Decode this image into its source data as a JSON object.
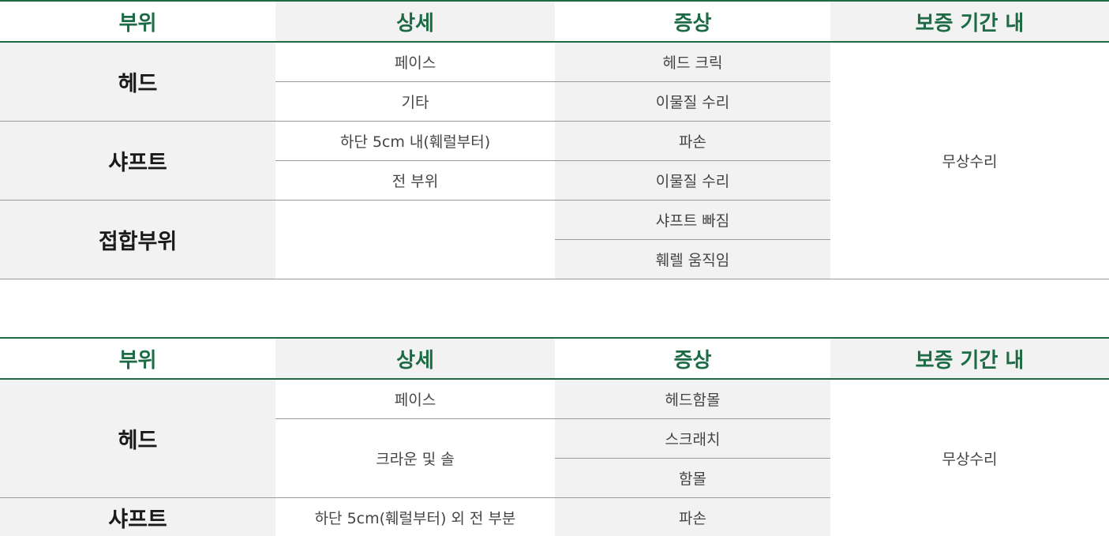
{
  "headers": {
    "part": "부위",
    "detail": "상세",
    "symptom": "증상",
    "warranty": "보증 기간 내"
  },
  "table1": {
    "parts": {
      "head": "헤드",
      "shaft": "샤프트",
      "joint": "접합부위"
    },
    "details": {
      "face": "페이스",
      "etc": "기타",
      "lower5cm": "하단 5cm 내(훼럴부터)",
      "all": "전 부위",
      "joint_detail": ""
    },
    "symptoms": {
      "head_click": "헤드 크릭",
      "foreign_repair_1": "이물질 수리",
      "broken": "파손",
      "foreign_repair_2": "이물질 수리",
      "shaft_out": "샤프트 빠짐",
      "ferrule_move": "훼렐 움직임"
    },
    "warranty": "무상수리"
  },
  "table2": {
    "parts": {
      "head": "헤드",
      "shaft": "샤프트"
    },
    "details": {
      "face": "페이스",
      "crown_sole": "크라운 및 솔",
      "lower_outside": "하단 5cm(훼럴부터) 외 전 부분"
    },
    "symptoms": {
      "head_dent": "헤드함몰",
      "scratch": "스크래치",
      "dent": "함몰",
      "broken": "파손"
    },
    "warranty": "무상수리"
  },
  "colors": {
    "accent": "#1d6b45",
    "cell_gray": "#f2f2f2",
    "divider": "#9a9a9a"
  }
}
